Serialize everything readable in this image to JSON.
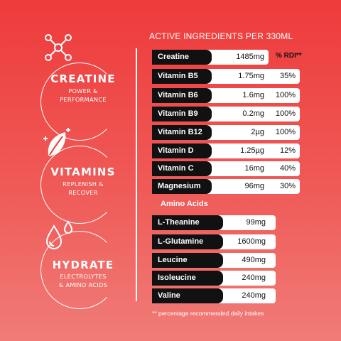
{
  "heading": "ACTIVE INGREDIENTS PER 330ML",
  "rdi_header": "% RDI**",
  "features": [
    {
      "title": "CREATINE",
      "subtitle": "POWER &\nPERFORMANCE",
      "icon": "molecule-icon"
    },
    {
      "title": "VITAMINS",
      "subtitle": "REPLENISH &\nRECOVER",
      "icon": "leaf-icon"
    },
    {
      "title": "HYDRATE",
      "subtitle": "ELECTROLYTES\n& AMINO ACIDS",
      "icon": "droplets-icon"
    }
  ],
  "ingredients": [
    {
      "name": "Creatine",
      "amount": "1485mg",
      "rdi": ""
    },
    {
      "name": "Vitamin B5",
      "amount": "1.75mg",
      "rdi": "35%"
    },
    {
      "name": "Vitamin B6",
      "amount": "1.6mg",
      "rdi": "100%"
    },
    {
      "name": "Vitamin B9",
      "amount": "0.2mg",
      "rdi": "100%"
    },
    {
      "name": "Vitamin B12",
      "amount": "2µg",
      "rdi": "100%"
    },
    {
      "name": "Vitamin D",
      "amount": "1.25µg",
      "rdi": "12%"
    },
    {
      "name": "Vitamin C",
      "amount": "16mg",
      "rdi": "40%"
    },
    {
      "name": "Magnesium",
      "amount": "96mg",
      "rdi": "30%"
    }
  ],
  "amino_header": "Amino Acids",
  "amino_acids": [
    {
      "name": "L-Theanine",
      "amount": "99mg"
    },
    {
      "name": "L-Glutamine",
      "amount": "1600mg"
    },
    {
      "name": "Leucine",
      "amount": "490mg"
    },
    {
      "name": "Isoleucine",
      "amount": "240mg"
    },
    {
      "name": "Valine",
      "amount": "240mg"
    }
  ],
  "footnote": "** percentage recommended daily intakes",
  "colors": {
    "background_top": "#ee3b3b",
    "background_bottom": "#f07c78",
    "label_fill": "#111111",
    "bar_fill": "#ffffff"
  }
}
